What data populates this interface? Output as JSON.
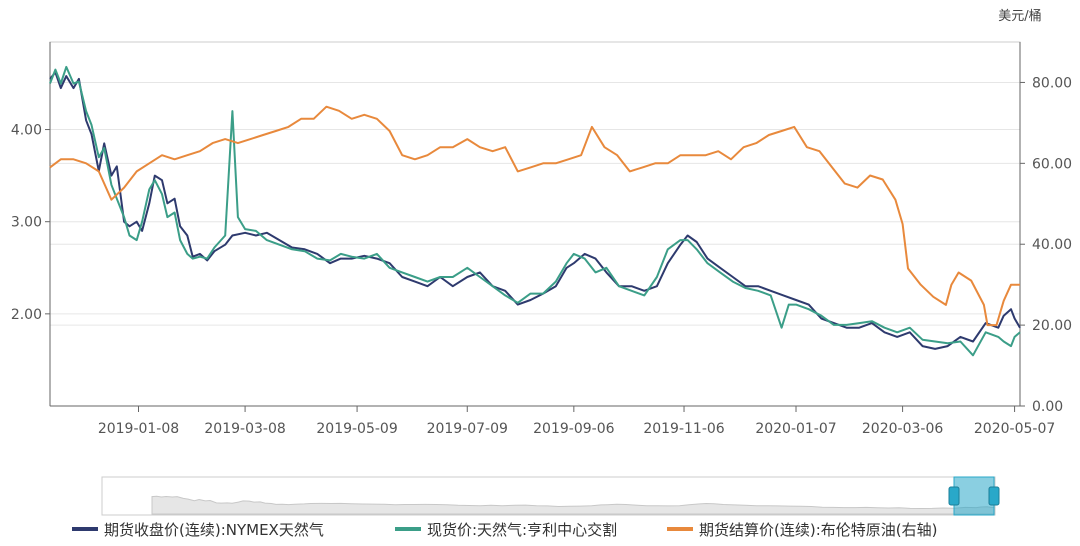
{
  "chart_data": {
    "type": "line",
    "right_axis_unit": "美元/桶",
    "x_ticks": [
      "2019-01-08",
      "2019-03-08",
      "2019-05-09",
      "2019-07-09",
      "2019-09-06",
      "2019-11-06",
      "2020-01-07",
      "2020-03-06",
      "2020-05-07"
    ],
    "x_range": [
      "2018-11-20",
      "2020-05-10"
    ],
    "left_axis": {
      "ticks": [
        "2.00",
        "3.00",
        "4.00"
      ],
      "range": [
        1.0,
        4.95
      ]
    },
    "right_axis": {
      "ticks": [
        "0.00",
        "20.00",
        "40.00",
        "60.00",
        "80.00"
      ],
      "range": [
        0,
        90
      ]
    },
    "grid": true,
    "legend_position": "bottom",
    "series": [
      {
        "name": "期货收盘价(连续):NYMEX天然气",
        "axis": "left",
        "color": "#2e3a6e",
        "points": [
          [
            "2018-11-20",
            4.55
          ],
          [
            "2018-11-23",
            4.62
          ],
          [
            "2018-11-26",
            4.45
          ],
          [
            "2018-11-29",
            4.58
          ],
          [
            "2018-12-03",
            4.45
          ],
          [
            "2018-12-06",
            4.55
          ],
          [
            "2018-12-10",
            4.1
          ],
          [
            "2018-12-13",
            3.95
          ],
          [
            "2018-12-17",
            3.55
          ],
          [
            "2018-12-20",
            3.85
          ],
          [
            "2018-12-24",
            3.5
          ],
          [
            "2018-12-27",
            3.6
          ],
          [
            "2018-12-31",
            3.0
          ],
          [
            "2019-01-03",
            2.95
          ],
          [
            "2019-01-07",
            3.0
          ],
          [
            "2019-01-10",
            2.9
          ],
          [
            "2019-01-14",
            3.2
          ],
          [
            "2019-01-17",
            3.5
          ],
          [
            "2019-01-21",
            3.45
          ],
          [
            "2019-01-24",
            3.2
          ],
          [
            "2019-01-28",
            3.25
          ],
          [
            "2019-01-31",
            2.95
          ],
          [
            "2019-02-04",
            2.85
          ],
          [
            "2019-02-07",
            2.62
          ],
          [
            "2019-02-11",
            2.65
          ],
          [
            "2019-02-15",
            2.58
          ],
          [
            "2019-02-19",
            2.68
          ],
          [
            "2019-02-25",
            2.75
          ],
          [
            "2019-03-01",
            2.85
          ],
          [
            "2019-03-08",
            2.88
          ],
          [
            "2019-03-14",
            2.85
          ],
          [
            "2019-03-20",
            2.88
          ],
          [
            "2019-03-27",
            2.8
          ],
          [
            "2019-04-03",
            2.72
          ],
          [
            "2019-04-10",
            2.7
          ],
          [
            "2019-04-17",
            2.65
          ],
          [
            "2019-04-24",
            2.55
          ],
          [
            "2019-04-30",
            2.6
          ],
          [
            "2019-05-06",
            2.6
          ],
          [
            "2019-05-13",
            2.63
          ],
          [
            "2019-05-20",
            2.6
          ],
          [
            "2019-05-27",
            2.55
          ],
          [
            "2019-06-03",
            2.4
          ],
          [
            "2019-06-10",
            2.35
          ],
          [
            "2019-06-17",
            2.3
          ],
          [
            "2019-06-24",
            2.4
          ],
          [
            "2019-07-01",
            2.3
          ],
          [
            "2019-07-09",
            2.4
          ],
          [
            "2019-07-16",
            2.45
          ],
          [
            "2019-07-23",
            2.3
          ],
          [
            "2019-07-30",
            2.25
          ],
          [
            "2019-08-06",
            2.1
          ],
          [
            "2019-08-13",
            2.15
          ],
          [
            "2019-08-20",
            2.22
          ],
          [
            "2019-08-27",
            2.3
          ],
          [
            "2019-09-02",
            2.5
          ],
          [
            "2019-09-06",
            2.55
          ],
          [
            "2019-09-12",
            2.65
          ],
          [
            "2019-09-18",
            2.6
          ],
          [
            "2019-09-24",
            2.45
          ],
          [
            "2019-10-01",
            2.3
          ],
          [
            "2019-10-08",
            2.3
          ],
          [
            "2019-10-15",
            2.25
          ],
          [
            "2019-10-22",
            2.3
          ],
          [
            "2019-10-28",
            2.55
          ],
          [
            "2019-11-04",
            2.75
          ],
          [
            "2019-11-08",
            2.85
          ],
          [
            "2019-11-13",
            2.78
          ],
          [
            "2019-11-19",
            2.6
          ],
          [
            "2019-11-26",
            2.5
          ],
          [
            "2019-12-03",
            2.4
          ],
          [
            "2019-12-10",
            2.3
          ],
          [
            "2019-12-17",
            2.3
          ],
          [
            "2019-12-24",
            2.25
          ],
          [
            "2019-12-31",
            2.2
          ],
          [
            "2020-01-07",
            2.15
          ],
          [
            "2020-01-14",
            2.1
          ],
          [
            "2020-01-21",
            1.95
          ],
          [
            "2020-01-28",
            1.9
          ],
          [
            "2020-02-04",
            1.85
          ],
          [
            "2020-02-11",
            1.85
          ],
          [
            "2020-02-18",
            1.9
          ],
          [
            "2020-02-25",
            1.8
          ],
          [
            "2020-03-03",
            1.75
          ],
          [
            "2020-03-10",
            1.8
          ],
          [
            "2020-03-17",
            1.65
          ],
          [
            "2020-03-24",
            1.62
          ],
          [
            "2020-03-31",
            1.65
          ],
          [
            "2020-04-07",
            1.75
          ],
          [
            "2020-04-14",
            1.7
          ],
          [
            "2020-04-21",
            1.9
          ],
          [
            "2020-04-28",
            1.85
          ],
          [
            "2020-05-01",
            1.98
          ],
          [
            "2020-05-05",
            2.05
          ],
          [
            "2020-05-07",
            1.95
          ],
          [
            "2020-05-10",
            1.85
          ]
        ]
      },
      {
        "name": "现货价:天然气:亨利中心交割",
        "axis": "left",
        "color": "#3b9e88",
        "points": [
          [
            "2018-11-20",
            4.5
          ],
          [
            "2018-11-23",
            4.65
          ],
          [
            "2018-11-26",
            4.5
          ],
          [
            "2018-11-29",
            4.68
          ],
          [
            "2018-12-03",
            4.5
          ],
          [
            "2018-12-06",
            4.52
          ],
          [
            "2018-12-10",
            4.2
          ],
          [
            "2018-12-13",
            4.05
          ],
          [
            "2018-12-17",
            3.7
          ],
          [
            "2018-12-20",
            3.8
          ],
          [
            "2018-12-24",
            3.4
          ],
          [
            "2018-12-27",
            3.25
          ],
          [
            "2018-12-31",
            3.05
          ],
          [
            "2019-01-03",
            2.85
          ],
          [
            "2019-01-07",
            2.8
          ],
          [
            "2019-01-10",
            3.0
          ],
          [
            "2019-01-14",
            3.35
          ],
          [
            "2019-01-17",
            3.45
          ],
          [
            "2019-01-21",
            3.3
          ],
          [
            "2019-01-24",
            3.05
          ],
          [
            "2019-01-28",
            3.1
          ],
          [
            "2019-01-31",
            2.8
          ],
          [
            "2019-02-04",
            2.65
          ],
          [
            "2019-02-07",
            2.6
          ],
          [
            "2019-02-11",
            2.62
          ],
          [
            "2019-02-15",
            2.6
          ],
          [
            "2019-02-19",
            2.72
          ],
          [
            "2019-02-25",
            2.85
          ],
          [
            "2019-03-01",
            4.2
          ],
          [
            "2019-03-04",
            3.05
          ],
          [
            "2019-03-08",
            2.92
          ],
          [
            "2019-03-14",
            2.9
          ],
          [
            "2019-03-20",
            2.8
          ],
          [
            "2019-03-27",
            2.75
          ],
          [
            "2019-04-03",
            2.7
          ],
          [
            "2019-04-10",
            2.68
          ],
          [
            "2019-04-17",
            2.6
          ],
          [
            "2019-04-24",
            2.58
          ],
          [
            "2019-04-30",
            2.65
          ],
          [
            "2019-05-06",
            2.62
          ],
          [
            "2019-05-13",
            2.6
          ],
          [
            "2019-05-20",
            2.65
          ],
          [
            "2019-05-27",
            2.5
          ],
          [
            "2019-06-03",
            2.45
          ],
          [
            "2019-06-10",
            2.4
          ],
          [
            "2019-06-17",
            2.35
          ],
          [
            "2019-06-24",
            2.4
          ],
          [
            "2019-07-01",
            2.4
          ],
          [
            "2019-07-09",
            2.5
          ],
          [
            "2019-07-16",
            2.4
          ],
          [
            "2019-07-23",
            2.3
          ],
          [
            "2019-07-30",
            2.2
          ],
          [
            "2019-08-06",
            2.12
          ],
          [
            "2019-08-13",
            2.22
          ],
          [
            "2019-08-20",
            2.22
          ],
          [
            "2019-08-27",
            2.35
          ],
          [
            "2019-09-02",
            2.55
          ],
          [
            "2019-09-06",
            2.65
          ],
          [
            "2019-09-12",
            2.6
          ],
          [
            "2019-09-18",
            2.45
          ],
          [
            "2019-09-24",
            2.5
          ],
          [
            "2019-10-01",
            2.3
          ],
          [
            "2019-10-08",
            2.25
          ],
          [
            "2019-10-15",
            2.2
          ],
          [
            "2019-10-22",
            2.4
          ],
          [
            "2019-10-28",
            2.7
          ],
          [
            "2019-11-04",
            2.8
          ],
          [
            "2019-11-08",
            2.8
          ],
          [
            "2019-11-13",
            2.7
          ],
          [
            "2019-11-19",
            2.55
          ],
          [
            "2019-11-26",
            2.45
          ],
          [
            "2019-12-03",
            2.35
          ],
          [
            "2019-12-10",
            2.28
          ],
          [
            "2019-12-17",
            2.25
          ],
          [
            "2019-12-24",
            2.2
          ],
          [
            "2019-12-30",
            1.85
          ],
          [
            "2020-01-03",
            2.1
          ],
          [
            "2020-01-07",
            2.1
          ],
          [
            "2020-01-14",
            2.05
          ],
          [
            "2020-01-21",
            1.98
          ],
          [
            "2020-01-28",
            1.88
          ],
          [
            "2020-02-04",
            1.88
          ],
          [
            "2020-02-11",
            1.9
          ],
          [
            "2020-02-18",
            1.92
          ],
          [
            "2020-02-25",
            1.85
          ],
          [
            "2020-03-03",
            1.8
          ],
          [
            "2020-03-10",
            1.85
          ],
          [
            "2020-03-17",
            1.72
          ],
          [
            "2020-03-24",
            1.7
          ],
          [
            "2020-03-31",
            1.68
          ],
          [
            "2020-04-07",
            1.7
          ],
          [
            "2020-04-14",
            1.55
          ],
          [
            "2020-04-21",
            1.8
          ],
          [
            "2020-04-28",
            1.75
          ],
          [
            "2020-05-01",
            1.7
          ],
          [
            "2020-05-05",
            1.65
          ],
          [
            "2020-05-07",
            1.75
          ],
          [
            "2020-05-10",
            1.8
          ]
        ]
      },
      {
        "name": "期货结算价(连续):布伦特原油(右轴)",
        "axis": "right",
        "color": "#e8893c",
        "points": [
          [
            "2018-11-20",
            59
          ],
          [
            "2018-11-26",
            61
          ],
          [
            "2018-12-03",
            61
          ],
          [
            "2018-12-10",
            60
          ],
          [
            "2018-12-17",
            58
          ],
          [
            "2018-12-24",
            51
          ],
          [
            "2018-12-31",
            54
          ],
          [
            "2019-01-07",
            58
          ],
          [
            "2019-01-14",
            60
          ],
          [
            "2019-01-21",
            62
          ],
          [
            "2019-01-28",
            61
          ],
          [
            "2019-02-04",
            62
          ],
          [
            "2019-02-11",
            63
          ],
          [
            "2019-02-18",
            65
          ],
          [
            "2019-02-25",
            66
          ],
          [
            "2019-03-04",
            65
          ],
          [
            "2019-03-11",
            66
          ],
          [
            "2019-03-18",
            67
          ],
          [
            "2019-03-25",
            68
          ],
          [
            "2019-04-01",
            69
          ],
          [
            "2019-04-08",
            71
          ],
          [
            "2019-04-15",
            71
          ],
          [
            "2019-04-22",
            74
          ],
          [
            "2019-04-29",
            73
          ],
          [
            "2019-05-06",
            71
          ],
          [
            "2019-05-13",
            72
          ],
          [
            "2019-05-20",
            71
          ],
          [
            "2019-05-27",
            68
          ],
          [
            "2019-06-03",
            62
          ],
          [
            "2019-06-10",
            61
          ],
          [
            "2019-06-17",
            62
          ],
          [
            "2019-06-24",
            64
          ],
          [
            "2019-07-01",
            64
          ],
          [
            "2019-07-09",
            66
          ],
          [
            "2019-07-16",
            64
          ],
          [
            "2019-07-23",
            63
          ],
          [
            "2019-07-30",
            64
          ],
          [
            "2019-08-06",
            58
          ],
          [
            "2019-08-13",
            59
          ],
          [
            "2019-08-20",
            60
          ],
          [
            "2019-08-27",
            60
          ],
          [
            "2019-09-03",
            61
          ],
          [
            "2019-09-10",
            62
          ],
          [
            "2019-09-16",
            69
          ],
          [
            "2019-09-23",
            64
          ],
          [
            "2019-09-30",
            62
          ],
          [
            "2019-10-07",
            58
          ],
          [
            "2019-10-14",
            59
          ],
          [
            "2019-10-21",
            60
          ],
          [
            "2019-10-28",
            60
          ],
          [
            "2019-11-04",
            62
          ],
          [
            "2019-11-11",
            62
          ],
          [
            "2019-11-18",
            62
          ],
          [
            "2019-11-25",
            63
          ],
          [
            "2019-12-02",
            61
          ],
          [
            "2019-12-09",
            64
          ],
          [
            "2019-12-16",
            65
          ],
          [
            "2019-12-23",
            67
          ],
          [
            "2019-12-30",
            68
          ],
          [
            "2020-01-06",
            69
          ],
          [
            "2020-01-13",
            64
          ],
          [
            "2020-01-20",
            63
          ],
          [
            "2020-01-27",
            59
          ],
          [
            "2020-02-03",
            55
          ],
          [
            "2020-02-10",
            54
          ],
          [
            "2020-02-17",
            57
          ],
          [
            "2020-02-24",
            56
          ],
          [
            "2020-03-02",
            51
          ],
          [
            "2020-03-06",
            45
          ],
          [
            "2020-03-09",
            34
          ],
          [
            "2020-03-16",
            30
          ],
          [
            "2020-03-23",
            27
          ],
          [
            "2020-03-30",
            25
          ],
          [
            "2020-04-02",
            30
          ],
          [
            "2020-04-06",
            33
          ],
          [
            "2020-04-13",
            31
          ],
          [
            "2020-04-20",
            25
          ],
          [
            "2020-04-22",
            20
          ],
          [
            "2020-04-27",
            20
          ],
          [
            "2020-05-01",
            26
          ],
          [
            "2020-05-05",
            30
          ],
          [
            "2020-05-10",
            30
          ]
        ]
      }
    ]
  },
  "slider": {
    "label_start": "",
    "label_end": "",
    "handle_color": "#29a8c9",
    "selected_range": [
      "2018-11-20",
      "2020-05-10"
    ]
  }
}
